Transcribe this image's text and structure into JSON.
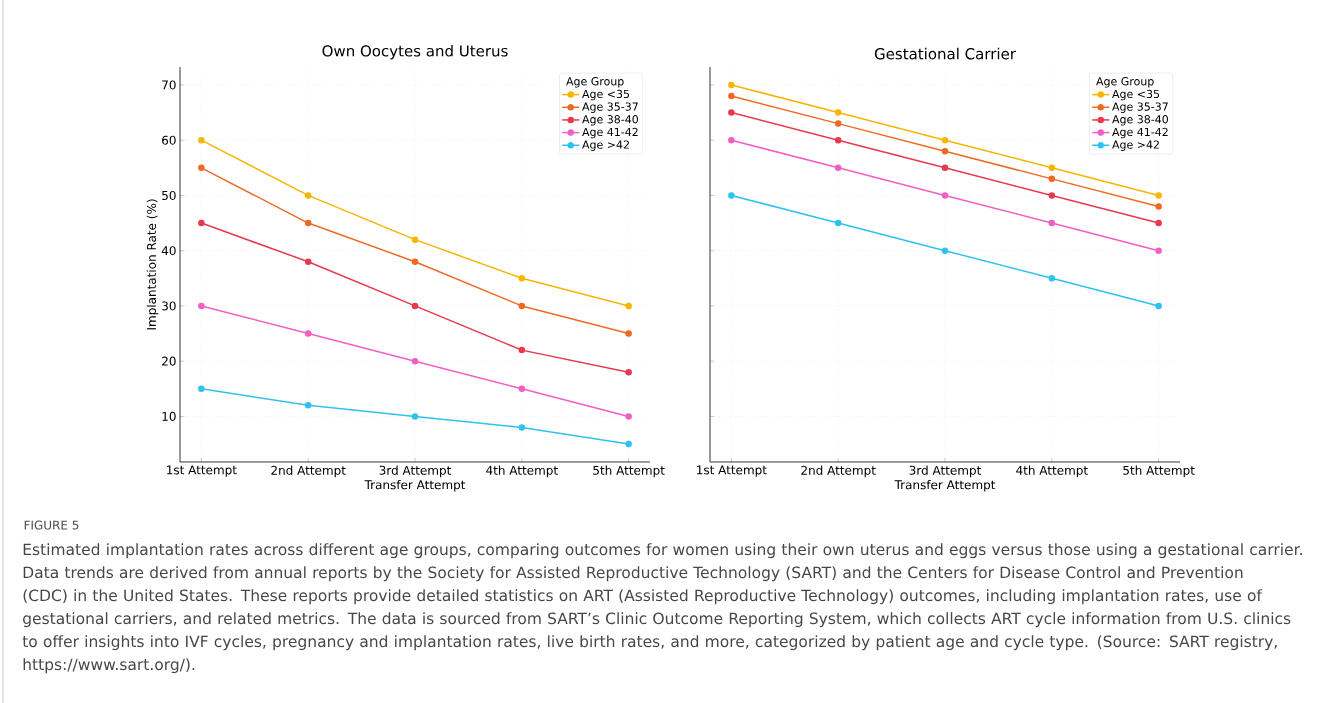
{
  "chart_data": [
    {
      "type": "line",
      "title": "Own Oocytes and Uterus",
      "xlabel": "Transfer Attempt",
      "ylabel": "Implantation Rate (%)",
      "legend_title": "Age Group",
      "categories": [
        "1st Attempt",
        "2nd Attempt",
        "3rd Attempt",
        "4th Attempt",
        "5th Attempt"
      ],
      "series": [
        {
          "name": "Age <35",
          "color": "#f7b500",
          "values": [
            60,
            50,
            42,
            35,
            30
          ]
        },
        {
          "name": "Age 35-37",
          "color": "#ee6a24",
          "values": [
            55,
            45,
            38,
            30,
            25
          ]
        },
        {
          "name": "Age 38-40",
          "color": "#e8384f",
          "values": [
            45,
            38,
            30,
            22,
            18
          ]
        },
        {
          "name": "Age 41-42",
          "color": "#f25fc4",
          "values": [
            30,
            25,
            20,
            15,
            10
          ]
        },
        {
          "name": "Age >42",
          "color": "#2fc2f0",
          "values": [
            15,
            12,
            10,
            8,
            5
          ]
        }
      ],
      "ylim": [
        1.75,
        73.25
      ],
      "yticks": [
        10,
        20,
        30,
        40,
        50,
        60,
        70
      ],
      "grid": true,
      "legend": "top right",
      "marker": "circle",
      "line_style": "solid",
      "annotations": [
        "FIGURE 5",
        "Estimated implantation rates across different age groups, comparing outcomes for women using their own uterus and eggs versus those using a gestational carrier. Data trends are derived from annual reports by the Society for Assisted Reproductive Technology (SART) and the Centers for Disease Control and Prevention (CDC) in the United States. These reports provide detailed statistics on ART (Assisted Reproductive Technology) outcomes, including implantation rates, use of gestational carriers, and related metrics. The data is sourced from SART’s Clinic Outcome Reporting System, which collects ART cycle information from U.S. clinics to offer insights into IVF cycles, pregnancy and implantation rates, live birth rates, and more, categorized by patient age and cycle type. (Source: SART registry, https://www.sart.org/)."
      ]
    },
    {
      "type": "line",
      "title": "Gestational Carrier",
      "xlabel": "Transfer Attempt",
      "legend_title": "Age Group",
      "categories": [
        "1st Attempt",
        "2nd Attempt",
        "3rd Attempt",
        "4th Attempt",
        "5th Attempt"
      ],
      "series": [
        {
          "name": "Age <35",
          "color": "#f7b500",
          "values": [
            70,
            65,
            60,
            55,
            50
          ]
        },
        {
          "name": "Age 35-37",
          "color": "#ee6a24",
          "values": [
            68,
            63,
            58,
            53,
            48
          ]
        },
        {
          "name": "Age 38-40",
          "color": "#e8384f",
          "values": [
            65,
            60,
            55,
            50,
            45
          ]
        },
        {
          "name": "Age 41-42",
          "color": "#f25fc4",
          "values": [
            60,
            55,
            50,
            45,
            40
          ]
        },
        {
          "name": "Age >42",
          "color": "#2fc2f0",
          "values": [
            50,
            45,
            40,
            35,
            30
          ]
        }
      ],
      "ylim": [
        1.75,
        73.25
      ],
      "yticks": [
        10,
        20,
        30,
        40,
        50,
        60,
        70
      ],
      "tick_labels": "x",
      "grid": true,
      "legend": "top right",
      "marker": "circle",
      "line_style": "solid"
    }
  ]
}
